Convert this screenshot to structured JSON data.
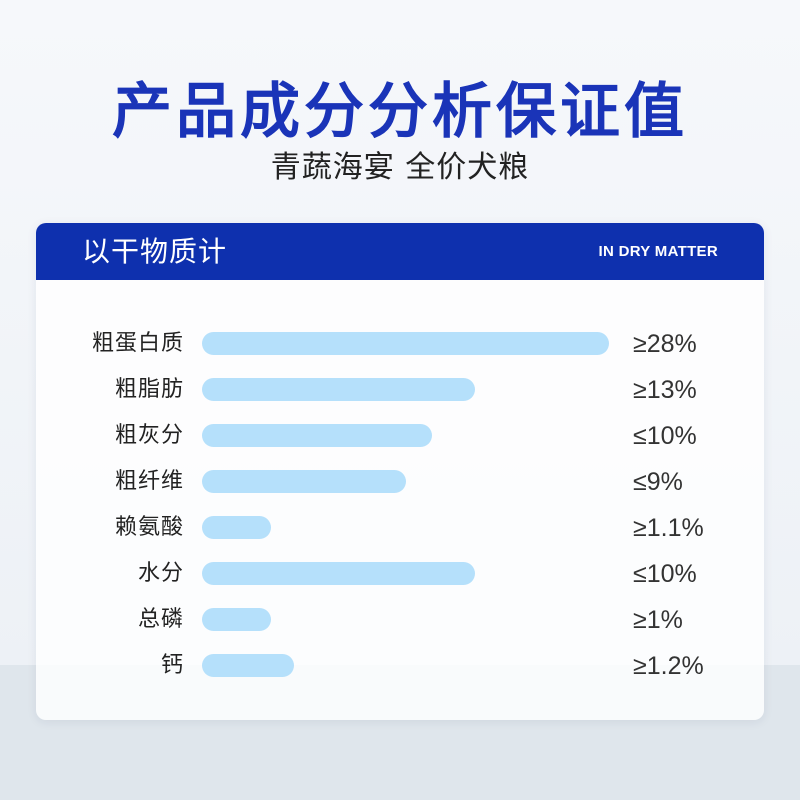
{
  "title": "产品成分分析保证值",
  "subtitle": "青蔬海宴 全价犬粮",
  "card": {
    "title": "以干物质计",
    "title_en": "IN DRY MATTER"
  },
  "colors": {
    "brand_blue": "#0e30ae",
    "title_blue": "#1a34b8",
    "bar": "#b5e0fb"
  },
  "chart_data": {
    "type": "bar",
    "orientation": "horizontal",
    "categories": [
      "粗蛋白质",
      "粗脂肪",
      "粗灰分",
      "粗纤维",
      "赖氨酸",
      "水分",
      "总磷",
      "钙"
    ],
    "value_labels": [
      "≥28%",
      "≥13%",
      "≤10%",
      "≤9%",
      "≥1.1%",
      "≤10%",
      "≥1%",
      "≥1.2%"
    ],
    "bar_fill": [
      1.0,
      0.67,
      0.565,
      0.5,
      0.17,
      0.67,
      0.17,
      0.225
    ]
  }
}
